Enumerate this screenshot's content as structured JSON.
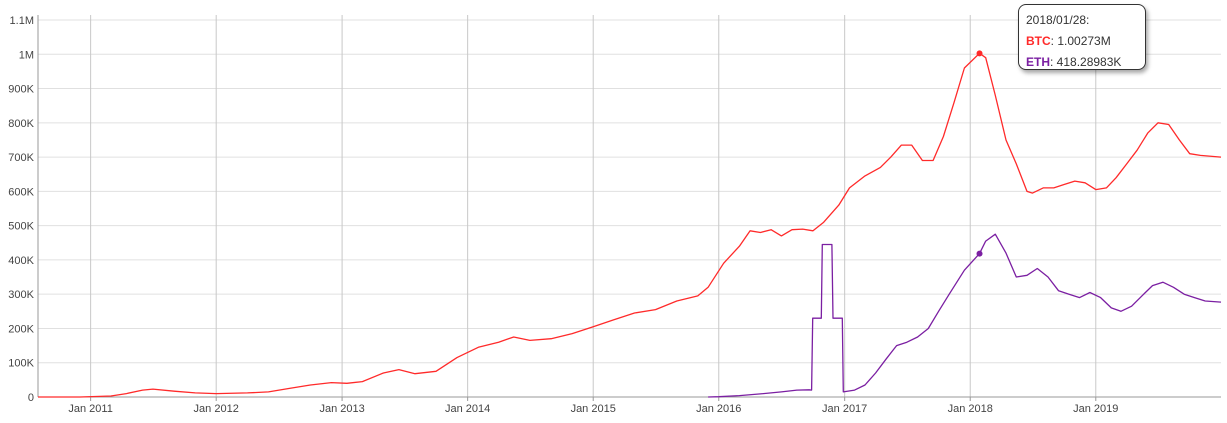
{
  "chart_data": {
    "type": "line",
    "title": "",
    "xlabel": "",
    "ylabel": "",
    "ylim": [
      0,
      1100000
    ],
    "xlim": [
      "2010-08-01",
      "2019-12-31"
    ],
    "grid": true,
    "y_ticks": [
      {
        "value": 0,
        "label": "0"
      },
      {
        "value": 100000,
        "label": "100K"
      },
      {
        "value": 200000,
        "label": "200K"
      },
      {
        "value": 300000,
        "label": "300K"
      },
      {
        "value": 400000,
        "label": "400K"
      },
      {
        "value": 500000,
        "label": "500K"
      },
      {
        "value": 600000,
        "label": "600K"
      },
      {
        "value": 700000,
        "label": "700K"
      },
      {
        "value": 800000,
        "label": "800K"
      },
      {
        "value": 900000,
        "label": "900K"
      },
      {
        "value": 1000000,
        "label": "1M"
      },
      {
        "value": 1100000,
        "label": "1.1M"
      }
    ],
    "x_ticks": [
      {
        "value": "2011-01-01",
        "label": "Jan 2011"
      },
      {
        "value": "2012-01-01",
        "label": "Jan 2012"
      },
      {
        "value": "2013-01-01",
        "label": "Jan 2013"
      },
      {
        "value": "2014-01-01",
        "label": "Jan 2014"
      },
      {
        "value": "2015-01-01",
        "label": "Jan 2015"
      },
      {
        "value": "2016-01-01",
        "label": "Jan 2016"
      },
      {
        "value": "2017-01-01",
        "label": "Jan 2017"
      },
      {
        "value": "2018-01-01",
        "label": "Jan 2018"
      },
      {
        "value": "2019-01-01",
        "label": "Jan 2019"
      }
    ],
    "series": [
      {
        "name": "BTC",
        "color": "#ff2a2a",
        "points": [
          [
            "2010-08-01",
            0
          ],
          [
            "2010-12-01",
            0
          ],
          [
            "2011-03-01",
            3000
          ],
          [
            "2011-04-15",
            10000
          ],
          [
            "2011-06-01",
            20000
          ],
          [
            "2011-07-01",
            23000
          ],
          [
            "2011-09-01",
            17000
          ],
          [
            "2011-11-01",
            12000
          ],
          [
            "2012-01-01",
            10000
          ],
          [
            "2012-04-01",
            12000
          ],
          [
            "2012-06-01",
            15000
          ],
          [
            "2012-08-01",
            25000
          ],
          [
            "2012-10-01",
            35000
          ],
          [
            "2012-12-01",
            42000
          ],
          [
            "2013-01-15",
            40000
          ],
          [
            "2013-03-01",
            45000
          ],
          [
            "2013-05-01",
            70000
          ],
          [
            "2013-06-15",
            80000
          ],
          [
            "2013-08-01",
            68000
          ],
          [
            "2013-10-01",
            75000
          ],
          [
            "2013-12-01",
            115000
          ],
          [
            "2014-02-01",
            145000
          ],
          [
            "2014-04-01",
            160000
          ],
          [
            "2014-05-15",
            175000
          ],
          [
            "2014-07-01",
            165000
          ],
          [
            "2014-09-01",
            170000
          ],
          [
            "2014-11-01",
            185000
          ],
          [
            "2015-01-01",
            205000
          ],
          [
            "2015-03-01",
            225000
          ],
          [
            "2015-05-01",
            245000
          ],
          [
            "2015-07-01",
            255000
          ],
          [
            "2015-09-01",
            280000
          ],
          [
            "2015-11-01",
            295000
          ],
          [
            "2015-12-01",
            320000
          ],
          [
            "2016-01-15",
            390000
          ],
          [
            "2016-03-01",
            440000
          ],
          [
            "2016-04-01",
            485000
          ],
          [
            "2016-05-01",
            480000
          ],
          [
            "2016-06-01",
            488000
          ],
          [
            "2016-07-01",
            470000
          ],
          [
            "2016-08-01",
            488000
          ],
          [
            "2016-09-01",
            490000
          ],
          [
            "2016-10-01",
            485000
          ],
          [
            "2016-11-01",
            510000
          ],
          [
            "2016-12-15",
            560000
          ],
          [
            "2017-01-15",
            610000
          ],
          [
            "2017-03-01",
            645000
          ],
          [
            "2017-04-15",
            670000
          ],
          [
            "2017-05-15",
            700000
          ],
          [
            "2017-06-15",
            735000
          ],
          [
            "2017-07-15",
            735000
          ],
          [
            "2017-08-15",
            690000
          ],
          [
            "2017-09-15",
            690000
          ],
          [
            "2017-10-15",
            760000
          ],
          [
            "2017-11-15",
            860000
          ],
          [
            "2017-12-15",
            960000
          ],
          [
            "2018-01-28",
            1002730
          ],
          [
            "2018-02-15",
            990000
          ],
          [
            "2018-03-15",
            880000
          ],
          [
            "2018-04-15",
            750000
          ],
          [
            "2018-05-15",
            680000
          ],
          [
            "2018-06-15",
            600000
          ],
          [
            "2018-07-01",
            595000
          ],
          [
            "2018-08-01",
            610000
          ],
          [
            "2018-09-01",
            610000
          ],
          [
            "2018-10-01",
            620000
          ],
          [
            "2018-11-01",
            630000
          ],
          [
            "2018-12-01",
            625000
          ],
          [
            "2019-01-01",
            605000
          ],
          [
            "2019-02-01",
            610000
          ],
          [
            "2019-03-01",
            640000
          ],
          [
            "2019-04-01",
            680000
          ],
          [
            "2019-05-01",
            720000
          ],
          [
            "2019-06-01",
            770000
          ],
          [
            "2019-07-01",
            800000
          ],
          [
            "2019-08-01",
            795000
          ],
          [
            "2019-09-01",
            750000
          ],
          [
            "2019-10-01",
            710000
          ],
          [
            "2019-11-01",
            705000
          ],
          [
            "2019-12-31",
            700000
          ]
        ]
      },
      {
        "name": "ETH",
        "color": "#7b1fa2",
        "points": [
          [
            "2015-12-01",
            0
          ],
          [
            "2016-01-01",
            1000
          ],
          [
            "2016-03-01",
            4000
          ],
          [
            "2016-05-01",
            9000
          ],
          [
            "2016-07-01",
            15000
          ],
          [
            "2016-08-15",
            20000
          ],
          [
            "2016-09-20",
            21000
          ],
          [
            "2016-09-27",
            20000
          ],
          [
            "2016-09-30",
            230000
          ],
          [
            "2016-10-25",
            230000
          ],
          [
            "2016-10-28",
            445000
          ],
          [
            "2016-11-25",
            445000
          ],
          [
            "2016-11-28",
            230000
          ],
          [
            "2016-12-25",
            230000
          ],
          [
            "2016-12-28",
            15000
          ],
          [
            "2017-01-30",
            20000
          ],
          [
            "2017-03-01",
            35000
          ],
          [
            "2017-04-01",
            70000
          ],
          [
            "2017-05-01",
            110000
          ],
          [
            "2017-06-01",
            150000
          ],
          [
            "2017-07-01",
            160000
          ],
          [
            "2017-08-01",
            175000
          ],
          [
            "2017-09-01",
            200000
          ],
          [
            "2017-10-01",
            250000
          ],
          [
            "2017-11-01",
            300000
          ],
          [
            "2017-12-15",
            370000
          ],
          [
            "2018-01-28",
            418289
          ],
          [
            "2018-02-15",
            455000
          ],
          [
            "2018-03-15",
            475000
          ],
          [
            "2018-04-15",
            420000
          ],
          [
            "2018-05-15",
            350000
          ],
          [
            "2018-06-15",
            355000
          ],
          [
            "2018-07-15",
            375000
          ],
          [
            "2018-08-15",
            350000
          ],
          [
            "2018-09-15",
            310000
          ],
          [
            "2018-10-15",
            300000
          ],
          [
            "2018-11-15",
            290000
          ],
          [
            "2018-12-15",
            305000
          ],
          [
            "2019-01-15",
            290000
          ],
          [
            "2019-02-15",
            260000
          ],
          [
            "2019-03-15",
            250000
          ],
          [
            "2019-04-15",
            265000
          ],
          [
            "2019-05-15",
            295000
          ],
          [
            "2019-06-15",
            325000
          ],
          [
            "2019-07-15",
            335000
          ],
          [
            "2019-08-15",
            320000
          ],
          [
            "2019-09-15",
            300000
          ],
          [
            "2019-10-15",
            290000
          ],
          [
            "2019-11-15",
            280000
          ],
          [
            "2019-12-31",
            277000
          ]
        ]
      }
    ],
    "highlight": {
      "date": "2018-01-28",
      "btc_value": 1002730,
      "eth_value": 418289
    }
  },
  "tooltip": {
    "date_label": "2018/01/28:",
    "btc_name": "BTC",
    "btc_value": "1.00273M",
    "eth_name": "ETH",
    "eth_value": "418.28983K"
  }
}
